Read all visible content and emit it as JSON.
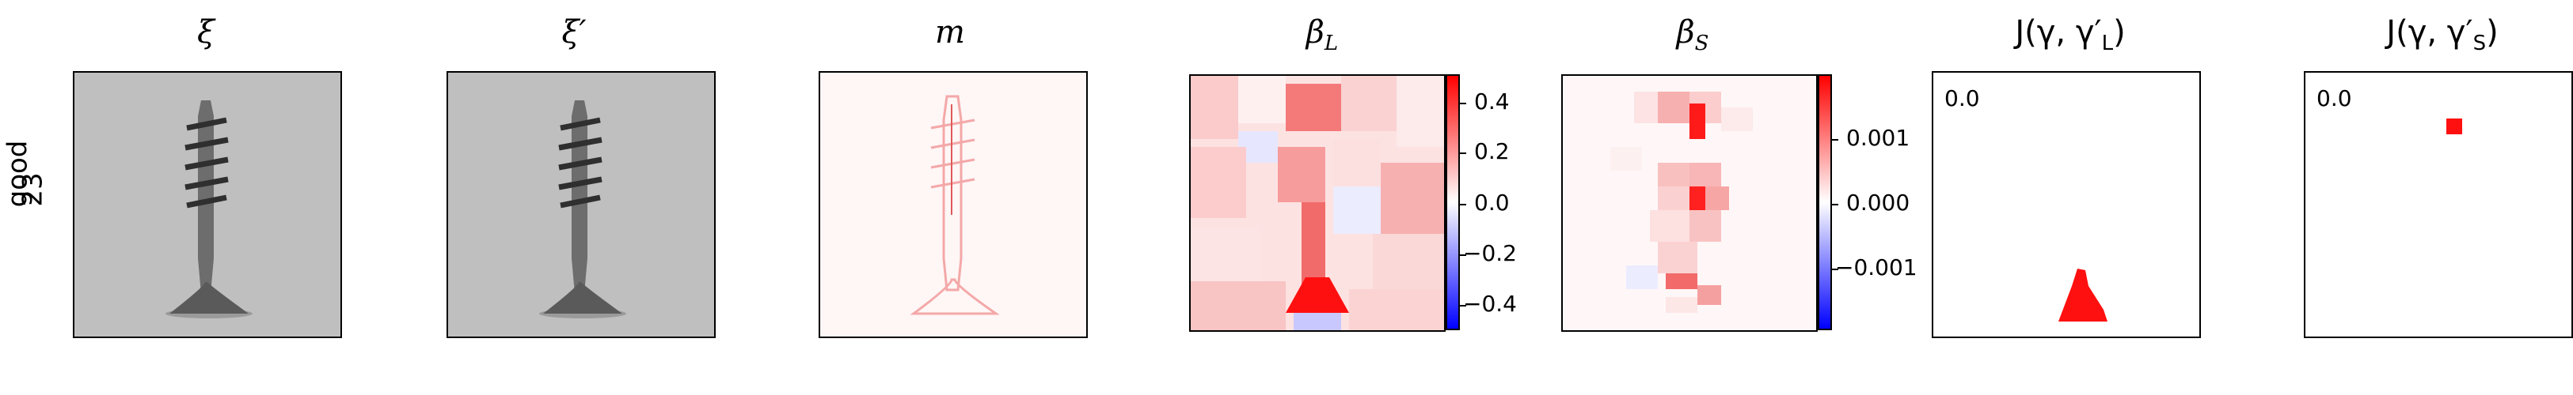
{
  "row_label": {
    "line1": "good",
    "line2": "23"
  },
  "panels": [
    {
      "title": "ξ"
    },
    {
      "title": "ξ′"
    },
    {
      "title": "m"
    },
    {
      "title": "β",
      "subscript": "L"
    },
    {
      "title": "β",
      "subscript": "S"
    },
    {
      "title": "J(γ, γ′",
      "subscript": "L",
      "suffix": ")"
    },
    {
      "title": "J(γ, γ′",
      "subscript": "S",
      "suffix": ")"
    }
  ],
  "colorbar_L": {
    "ticks": [
      "0.4",
      "0.2",
      "0.0",
      "−0.2",
      "−0.4"
    ]
  },
  "colorbar_S": {
    "ticks": [
      "0.001",
      "0.000",
      "−0.001"
    ]
  },
  "j_values": {
    "L": "0.0",
    "S": "0.0"
  },
  "colors": {
    "positive": "#ff0000",
    "negative": "#0000ff",
    "neutral": "#ffffff",
    "photo_bg": "#bdbdbd"
  }
}
